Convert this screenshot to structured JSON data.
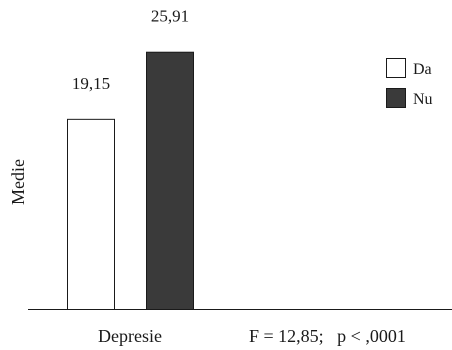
{
  "chart_data": {
    "type": "bar",
    "categories": [
      "Depresie"
    ],
    "series": [
      {
        "name": "Da",
        "values": [
          19.15
        ],
        "value_labels": [
          "19,15"
        ],
        "color": "#ffffff"
      },
      {
        "name": "Nu",
        "values": [
          25.91
        ],
        "value_labels": [
          "25,91"
        ],
        "color": "#3a3a3a"
      }
    ],
    "ylabel": "Medie",
    "xlabel": "",
    "ylim": [
      0,
      30
    ],
    "annotation": "F = 12,85;   p < ,0001",
    "legend_position": "top-right",
    "grid": false
  }
}
